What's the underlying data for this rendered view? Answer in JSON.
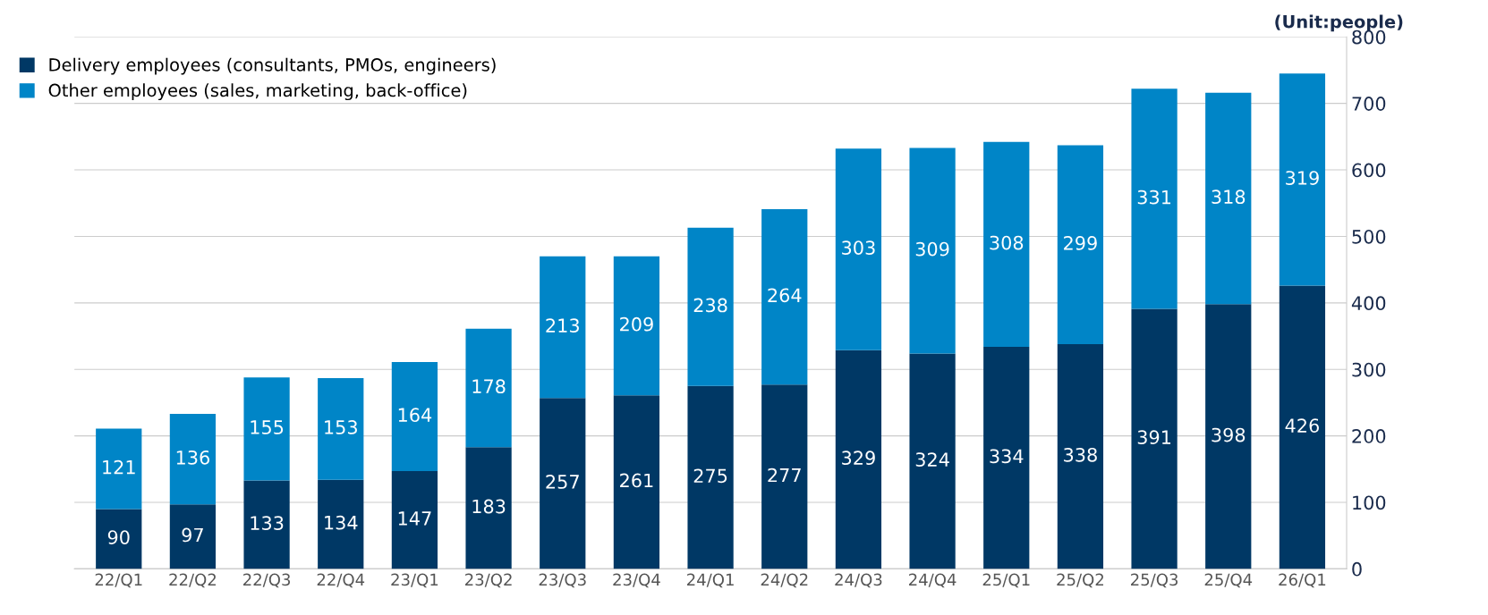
{
  "chart_data": {
    "type": "bar",
    "stacked": true,
    "ylabel": "(Unit:people)",
    "categories": [
      "22/Q1",
      "22/Q2",
      "22/Q3",
      "22/Q4",
      "23/Q1",
      "23/Q2",
      "23/Q3",
      "23/Q4",
      "24/Q1",
      "24/Q2",
      "24/Q3",
      "24/Q4",
      "25/Q1",
      "25/Q2",
      "25/Q3",
      "25/Q4",
      "26/Q1"
    ],
    "series": [
      {
        "name": "Delivery employees (consultants, PMOs, engineers)",
        "color": "#003865",
        "values": [
          90,
          97,
          133,
          134,
          147,
          183,
          257,
          261,
          275,
          277,
          329,
          324,
          334,
          338,
          391,
          398,
          426
        ]
      },
      {
        "name": "Other employees (sales, marketing, back-office)",
        "color": "#0085c7",
        "values": [
          121,
          136,
          155,
          153,
          164,
          178,
          213,
          209,
          238,
          264,
          303,
          309,
          308,
          299,
          331,
          318,
          319
        ]
      }
    ],
    "ylim": [
      0,
      800
    ],
    "yticks": [
      0,
      100,
      200,
      300,
      400,
      500,
      600,
      700,
      800
    ],
    "grid": "y",
    "legend": "top left",
    "data_labels": true
  }
}
